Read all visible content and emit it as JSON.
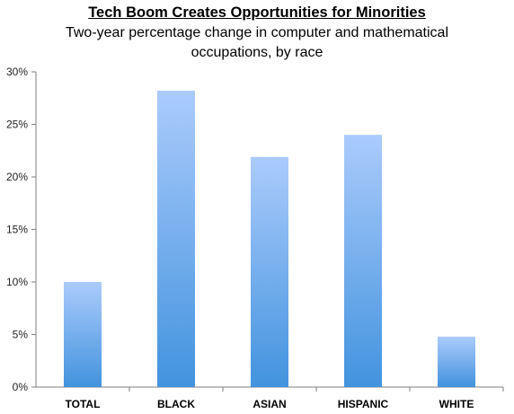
{
  "chart_data": {
    "type": "bar",
    "title": "Tech Boom Creates Opportunities for Minorities",
    "subtitle": "Two-year percentage change in computer and mathematical occupations, by race",
    "categories": [
      "TOTAL",
      "BLACK",
      "ASIAN",
      "HISPANIC",
      "WHITE"
    ],
    "values": [
      10.0,
      28.2,
      21.9,
      24.0,
      4.8
    ],
    "value_unit": "%",
    "ylim": [
      0,
      30
    ],
    "yticks": [
      0,
      5,
      10,
      15,
      20,
      25,
      30
    ],
    "ytick_labels": [
      "0%",
      "5%",
      "10%",
      "15%",
      "20%",
      "25%",
      "30%"
    ],
    "xlabel": "",
    "ylabel": "",
    "grid": false,
    "legend": "none",
    "colors": {
      "bar_top": "#abcbfc",
      "bar_bottom": "#4293de",
      "axis": "#7f7f7f"
    }
  }
}
